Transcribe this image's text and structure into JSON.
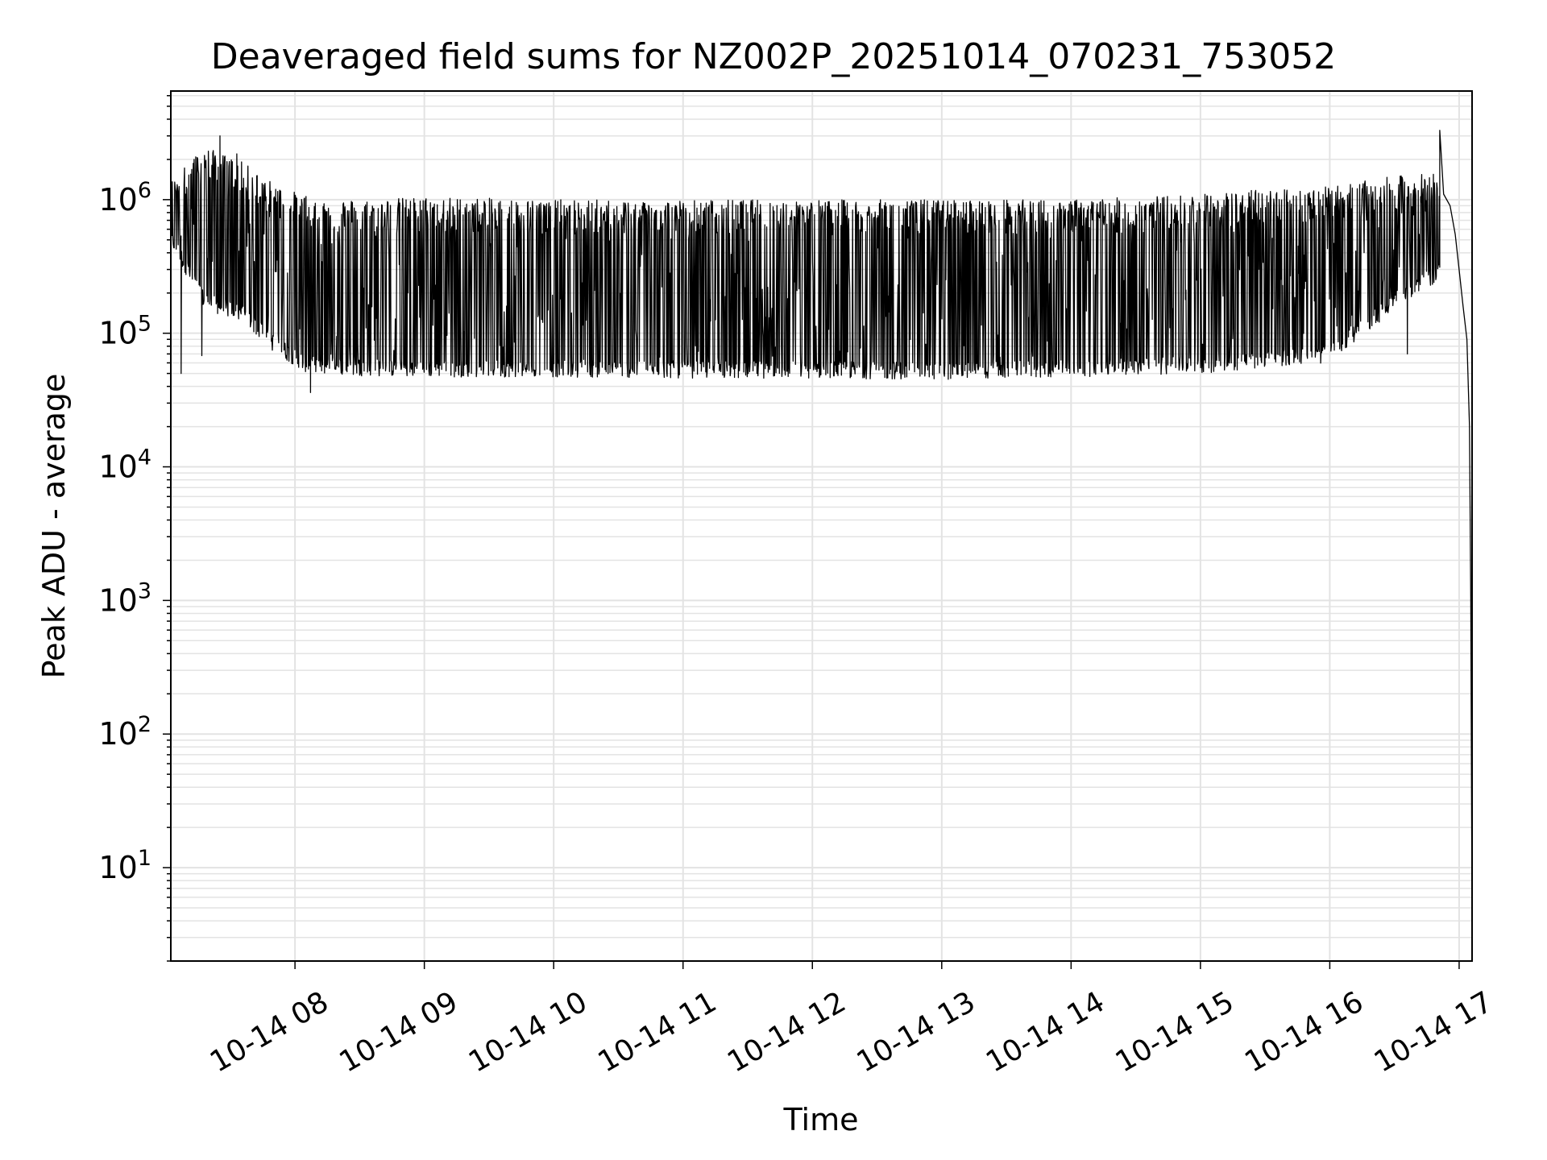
{
  "chart_data": {
    "type": "line",
    "title": "Deaveraged field sums for NZ002P_20251014_070231_753052",
    "xlabel": "Time",
    "ylabel": "Peak ADU - average",
    "yscale": "log",
    "xlim_hours": [
      7.04,
      17.1
    ],
    "ylim": [
      2,
      6500000
    ],
    "grid": "major and minor",
    "x_ticks": [
      {
        "hour": 8,
        "label": "10-14 08"
      },
      {
        "hour": 9,
        "label": "10-14 09"
      },
      {
        "hour": 10,
        "label": "10-14 10"
      },
      {
        "hour": 11,
        "label": "10-14 11"
      },
      {
        "hour": 12,
        "label": "10-14 12"
      },
      {
        "hour": 13,
        "label": "10-14 13"
      },
      {
        "hour": 14,
        "label": "10-14 14"
      },
      {
        "hour": 15,
        "label": "10-14 15"
      },
      {
        "hour": 16,
        "label": "10-14 16"
      },
      {
        "hour": 17,
        "label": "10-14 17"
      }
    ],
    "y_ticks": [
      {
        "value": 10,
        "base": "10",
        "exp": "1"
      },
      {
        "value": 100,
        "base": "10",
        "exp": "2"
      },
      {
        "value": 1000,
        "base": "10",
        "exp": "3"
      },
      {
        "value": 10000,
        "base": "10",
        "exp": "4"
      },
      {
        "value": 100000,
        "base": "10",
        "exp": "5"
      },
      {
        "value": 1000000,
        "base": "10",
        "exp": "6"
      }
    ],
    "series": [
      {
        "name": "deaveraged field sum",
        "color": "#000000",
        "envelope": [
          {
            "hour": 7.04,
            "low": 450000,
            "high": 1400000
          },
          {
            "hour": 7.3,
            "low": 150000,
            "high": 2500000
          },
          {
            "hour": 7.6,
            "low": 120000,
            "high": 1900000
          },
          {
            "hour": 7.85,
            "low": 70000,
            "high": 1300000
          },
          {
            "hour": 8.1,
            "low": 50000,
            "high": 1050000
          },
          {
            "hour": 8.5,
            "low": 48000,
            "high": 1000000
          },
          {
            "hour": 9.0,
            "low": 47000,
            "high": 1050000
          },
          {
            "hour": 10.0,
            "low": 47000,
            "high": 1000000
          },
          {
            "hour": 11.0,
            "low": 46000,
            "high": 1000000
          },
          {
            "hour": 12.0,
            "low": 46000,
            "high": 1000000
          },
          {
            "hour": 13.0,
            "low": 45000,
            "high": 1000000
          },
          {
            "hour": 14.0,
            "low": 47000,
            "high": 1000000
          },
          {
            "hour": 15.0,
            "low": 50000,
            "high": 1100000
          },
          {
            "hour": 15.5,
            "low": 55000,
            "high": 1200000
          },
          {
            "hour": 16.0,
            "low": 60000,
            "high": 1250000
          },
          {
            "hour": 16.5,
            "low": 150000,
            "high": 1500000
          },
          {
            "hour": 16.85,
            "low": 250000,
            "high": 1600000
          }
        ],
        "spikes": [
          {
            "hour": 7.12,
            "value": 50000
          },
          {
            "hour": 7.22,
            "value": 2000000
          },
          {
            "hour": 7.28,
            "value": 68000
          },
          {
            "hour": 7.42,
            "value": 3000000
          },
          {
            "hour": 7.55,
            "value": 2200000
          },
          {
            "hour": 8.12,
            "value": 36000
          },
          {
            "hour": 16.85,
            "value": 3300000
          },
          {
            "hour": 16.6,
            "value": 70000
          }
        ],
        "tail": [
          {
            "hour": 16.88,
            "value": 1100000
          },
          {
            "hour": 16.93,
            "value": 900000
          },
          {
            "hour": 16.97,
            "value": 550000
          },
          {
            "hour": 17.0,
            "value": 300000
          },
          {
            "hour": 17.03,
            "value": 160000
          },
          {
            "hour": 17.06,
            "value": 90000
          },
          {
            "hour": 17.08,
            "value": 20000
          },
          {
            "hour": 17.09,
            "value": 1000
          },
          {
            "hour": 17.1,
            "value": 3.8
          }
        ]
      }
    ]
  }
}
